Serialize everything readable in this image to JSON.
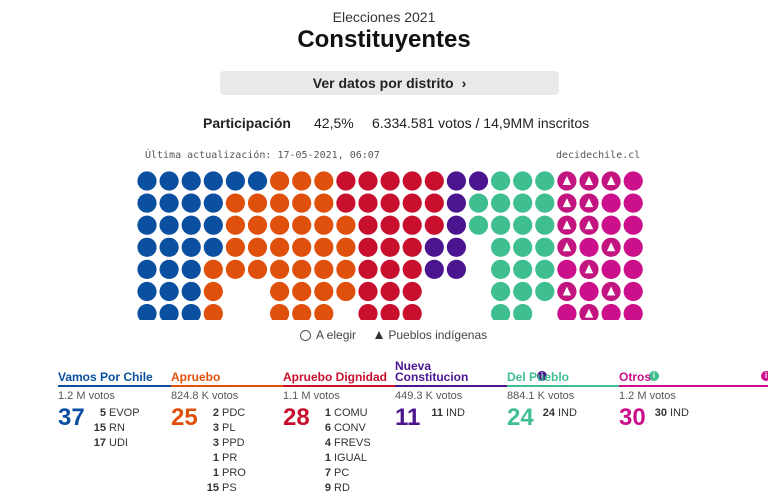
{
  "header": {
    "subtitle": "Elecciones 2021",
    "title": "Constituyentes"
  },
  "district_button": {
    "label": "Ver datos por distrito",
    "chevron": "chevron-right-icon"
  },
  "participation": {
    "label": "Participación",
    "percent": "42,5%",
    "detail": "6.334.581 votos / 14,9MM inscritos"
  },
  "meta": {
    "updated": "Última actualización: 17-05-2021, 06:07",
    "source": "decidechile.cl"
  },
  "legend": {
    "pending": "A elegir",
    "indigenous": "Pueblos indígenas"
  },
  "colors": {
    "vamos": "#0a4fa0",
    "apruebo": "#e0500d",
    "dignidad": "#c8102e",
    "nueva": "#4b1590",
    "pueblo": "#3fbf8f",
    "otros": "#cc0f8a",
    "indigenous": "#c2157f"
  },
  "hemicycle": {
    "columns": [
      {
        "c": "vamos",
        "n": 7
      },
      {
        "c": "vamos",
        "n": 7
      },
      {
        "c": "vamos",
        "n": 7
      },
      {
        "c": "vamos",
        "n": 7
      },
      {
        "c": "vamos",
        "n": 5
      },
      {
        "c": "vamos",
        "n": 5
      },
      {
        "c": "apruebo",
        "n": 7
      },
      {
        "c": "apruebo",
        "n": 7
      },
      {
        "c": "apruebo",
        "n": 7
      },
      {
        "c": "apruebo",
        "n": 6
      },
      {
        "c": "dignidad",
        "n": 7
      },
      {
        "c": "dignidad",
        "n": 7
      },
      {
        "c": "dignidad",
        "n": 7
      },
      {
        "c": "dignidad",
        "n": 5
      },
      {
        "c": "nueva",
        "n": 5
      },
      {
        "c": "nueva",
        "n": 3
      },
      {
        "c": "pueblo",
        "n": 7
      },
      {
        "c": "pueblo",
        "n": 7
      },
      {
        "c": "pueblo",
        "n": 6
      },
      {
        "c": "otros",
        "n": 7
      },
      {
        "c": "otros",
        "n": 7
      },
      {
        "c": "otros",
        "n": 7
      },
      {
        "c": "otros",
        "n": 7
      }
    ],
    "mixed": [
      {
        "col": 3,
        "rows": [
          {
            "from": 4,
            "c": "apruebo"
          }
        ]
      },
      {
        "col": 4,
        "rows": [
          {
            "from": 0,
            "c": "vamos",
            "to": 0
          },
          {
            "from": 1,
            "c": "apruebo"
          }
        ]
      },
      {
        "col": 5,
        "rows": [
          {
            "from": 0,
            "c": "vamos",
            "to": 0
          },
          {
            "from": 1,
            "c": "apruebo"
          }
        ]
      },
      {
        "col": 9,
        "rows": [
          {
            "from": 0,
            "c": "dignidad",
            "to": 1
          }
        ]
      },
      {
        "col": 13,
        "rows": [
          {
            "from": 3,
            "c": "nueva"
          }
        ]
      },
      {
        "col": 14,
        "rows": [
          {
            "from": 0,
            "c": "nueva"
          }
        ]
      },
      {
        "col": 15,
        "rows": [
          {
            "from": 0,
            "c": "nueva",
            "to": 0
          },
          {
            "from": 1,
            "c": "pueblo"
          }
        ]
      },
      {
        "col": 18,
        "rows": [
          {
            "from": 0,
            "c": "pueblo"
          }
        ]
      }
    ],
    "indigenous_marks": [
      [
        19,
        0
      ],
      [
        19,
        1
      ],
      [
        19,
        2
      ],
      [
        19,
        3
      ],
      [
        19,
        5
      ],
      [
        20,
        0
      ],
      [
        20,
        1
      ],
      [
        20,
        2
      ],
      [
        20,
        4
      ],
      [
        20,
        6
      ],
      [
        21,
        0
      ],
      [
        21,
        3
      ],
      [
        21,
        5
      ]
    ]
  },
  "coalitions": [
    {
      "name": "Vamos Por Chile",
      "color": "#0a4fa0",
      "votes": "1.2 M votos",
      "seats": "37",
      "info": false,
      "parties": [
        [
          "5",
          "EVOP"
        ],
        [
          "15",
          "RN"
        ],
        [
          "17",
          "UDI"
        ]
      ]
    },
    {
      "name": "Apruebo",
      "color": "#e0500d",
      "votes": "824.8 K votos",
      "seats": "25",
      "info": false,
      "parties": [
        [
          "2",
          "PDC"
        ],
        [
          "3",
          "PL"
        ],
        [
          "3",
          "PPD"
        ],
        [
          "1",
          "PR"
        ],
        [
          "1",
          "PRO"
        ],
        [
          "15",
          "PS"
        ]
      ]
    },
    {
      "name": "Apruebo Dignidad",
      "color": "#c8102e",
      "votes": "1.1 M votos",
      "seats": "28",
      "info": false,
      "parties": [
        [
          "1",
          "COMU"
        ],
        [
          "6",
          "CONV"
        ],
        [
          "4",
          "FREVS"
        ],
        [
          "1",
          "IGUAL"
        ],
        [
          "7",
          "PC"
        ],
        [
          "9",
          "RD"
        ]
      ]
    },
    {
      "name": "Nueva Constitucion",
      "color": "#4b1590",
      "votes": "449.3 K votos",
      "seats": "11",
      "info": true,
      "parties": [
        [
          "11",
          "IND"
        ]
      ]
    },
    {
      "name": "Del Pueblo",
      "color": "#3fbf8f",
      "votes": "884.1 K votos",
      "seats": "24",
      "info": true,
      "parties": [
        [
          "24",
          "IND"
        ]
      ]
    },
    {
      "name": "Otros",
      "color": "#cc0f8a",
      "votes": "1.2 M votos",
      "seats": "30",
      "info": true,
      "parties": [
        [
          "30",
          "IND"
        ]
      ]
    }
  ]
}
